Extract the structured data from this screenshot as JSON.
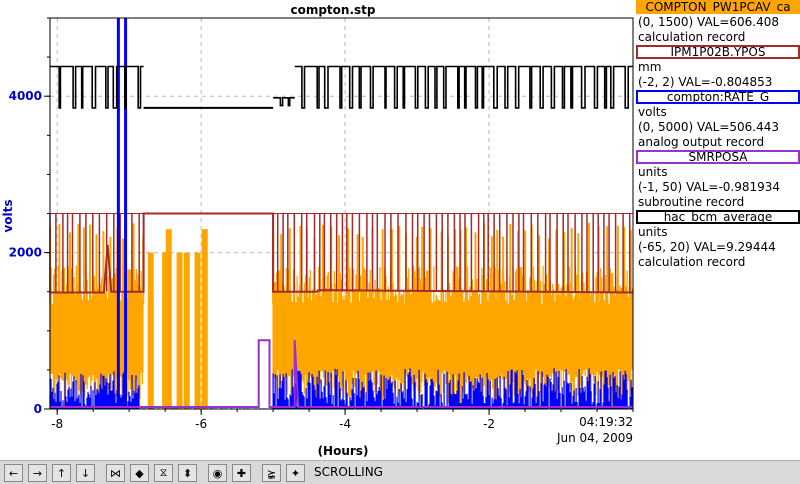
{
  "chart_data": {
    "type": "line",
    "title": "compton.stp",
    "xlabel": "(Hours)",
    "ylabel": "volts",
    "xlim": [
      -8.1,
      0
    ],
    "ylim": [
      0,
      5000
    ],
    "x_ticks": [
      -8,
      -6,
      -4,
      -2
    ],
    "y_ticks": [
      0,
      2000,
      4000
    ],
    "end_time": "04:19:32",
    "end_date": "Jun 04, 2009",
    "legend_position": "right",
    "grid": true,
    "series": [
      {
        "name": "COMPTON_PW1PCAV_ca",
        "color": "#ffa500",
        "range": "(0, 1500)",
        "val": "VAL=606.408",
        "units": "",
        "record": "calculation record",
        "segments": [
          {
            "x0": -8.1,
            "x1": -6.8,
            "band": [
              470,
              1340
            ],
            "spikes": 2380
          },
          {
            "x0": -6.8,
            "x1": -5.0,
            "band": [
              0,
              0
            ],
            "spikes": 0,
            "spike_x": [
              -6.7,
              -6.5,
              -6.45,
              -6.3,
              -6.2,
              -6.05,
              -5.95
            ],
            "spike_h": [
              2000,
              2000,
              2300,
              2000,
              2000,
              2000,
              2300
            ]
          },
          {
            "x0": -5.0,
            "x1": 0,
            "band": [
              510,
              1340
            ],
            "spikes": 2380
          }
        ]
      },
      {
        "name": "IPM1P02B.YPOS",
        "color": "#a52a2a",
        "range": "(-2, 2)",
        "val": "VAL=-0.804853",
        "units": "mm",
        "record": "",
        "points": [
          [
            -8.1,
            1490
          ],
          [
            -7.35,
            1490
          ],
          [
            -7.3,
            2100
          ],
          [
            -7.25,
            1500
          ],
          [
            -6.8,
            1500
          ],
          [
            -6.8,
            2500
          ],
          [
            -5.0,
            2500
          ],
          [
            -5.0,
            1500
          ],
          [
            -4.4,
            1500
          ],
          [
            -4.35,
            1520
          ],
          [
            0,
            1490
          ]
        ],
        "spikes": 2500
      },
      {
        "name": "compton:RATE_G",
        "color": "#0000ff",
        "range": "(0, 5000)",
        "val": "VAL=506.443",
        "units": "volts",
        "record": "analog output record",
        "segments": [
          {
            "x0": -8.1,
            "x1": -6.85,
            "band": [
              0,
              480
            ]
          },
          {
            "x0": -6.85,
            "x1": -5.0,
            "band": [
              0,
              10
            ]
          },
          {
            "x0": -5.0,
            "x1": 0,
            "band": [
              0,
              520
            ]
          }
        ],
        "spike_x": [
          -7.15,
          -7.05
        ],
        "spike_h": 5000
      },
      {
        "name": "SMRPOSA",
        "color": "#9932cc",
        "range": "(-1, 50)",
        "val": "VAL=-0.981934",
        "units": "units",
        "record": "subroutine record",
        "points": [
          [
            -8.1,
            25
          ],
          [
            -5.2,
            25
          ],
          [
            -5.2,
            880
          ],
          [
            -5.05,
            880
          ],
          [
            -5.05,
            25
          ],
          [
            -4.7,
            25
          ],
          [
            -4.7,
            880
          ],
          [
            -4.65,
            25
          ],
          [
            0,
            25
          ]
        ]
      },
      {
        "name": "hac_bcm_average",
        "color": "#000000",
        "range": "(-65, 20)",
        "val": "VAL=9.29444",
        "units": "units",
        "record": "calculation record",
        "segments": [
          {
            "x0": -8.1,
            "x1": -6.8,
            "levels": [
              3850,
              4380
            ]
          },
          {
            "x0": -6.8,
            "x1": -5.0,
            "levels": [
              3850,
              3850
            ]
          },
          {
            "x0": -5.0,
            "x1": -4.7,
            "levels": [
              3880,
              3980
            ]
          },
          {
            "x0": -4.7,
            "x1": 0,
            "levels": [
              3850,
              4380
            ]
          }
        ]
      }
    ]
  },
  "toolbar": {
    "buttons": [
      "arrow-left-icon",
      "arrow-right-icon",
      "arrow-up-icon",
      "arrow-down-icon",
      "zoom-in-x-icon",
      "zoom-out-x-icon",
      "zoom-in-y-icon",
      "zoom-out-y-icon",
      "autoscale-icon",
      "crosshair-icon",
      "stagger-icon",
      "config-icon"
    ],
    "glyphs": [
      "←",
      "→",
      "↑",
      "↓",
      "⋈",
      "◆",
      "⧖",
      "⬍",
      "◉",
      "✚",
      "⪶",
      "✦"
    ],
    "status": "SCROLLING"
  }
}
